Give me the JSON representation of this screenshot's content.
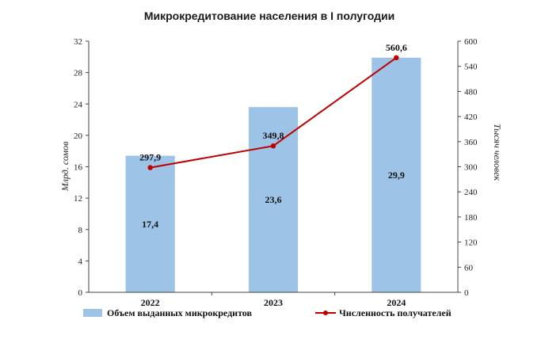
{
  "chart_data": {
    "type": "bar",
    "title": "Микрокредитование населения в I полугодии",
    "categories": [
      "2022",
      "2023",
      "2024"
    ],
    "series": [
      {
        "name": "Объем выданных микрокредитов",
        "type": "bar",
        "axis": "left",
        "values": [
          17.4,
          23.6,
          29.9
        ],
        "labels": [
          "17,4",
          "23,6",
          "29,9"
        ],
        "color": "#9dc3e6"
      },
      {
        "name": "Численность получателей",
        "type": "line",
        "axis": "right",
        "values": [
          297.9,
          349.8,
          560.6
        ],
        "labels": [
          "297,9",
          "349,8",
          "560,6"
        ],
        "color": "#c00000"
      }
    ],
    "ylabel": "Млрд. сомов",
    "y2label": "Тысяч человек",
    "ylim": [
      0,
      32
    ],
    "y2lim": [
      0,
      600
    ],
    "yticks": [
      "0",
      "4",
      "8",
      "12",
      "16",
      "20",
      "24",
      "28",
      "32"
    ],
    "y2ticks": [
      "0",
      "60",
      "120",
      "180",
      "240",
      "300",
      "360",
      "420",
      "480",
      "540",
      "600"
    ],
    "grid": false,
    "legend": "bottom"
  }
}
